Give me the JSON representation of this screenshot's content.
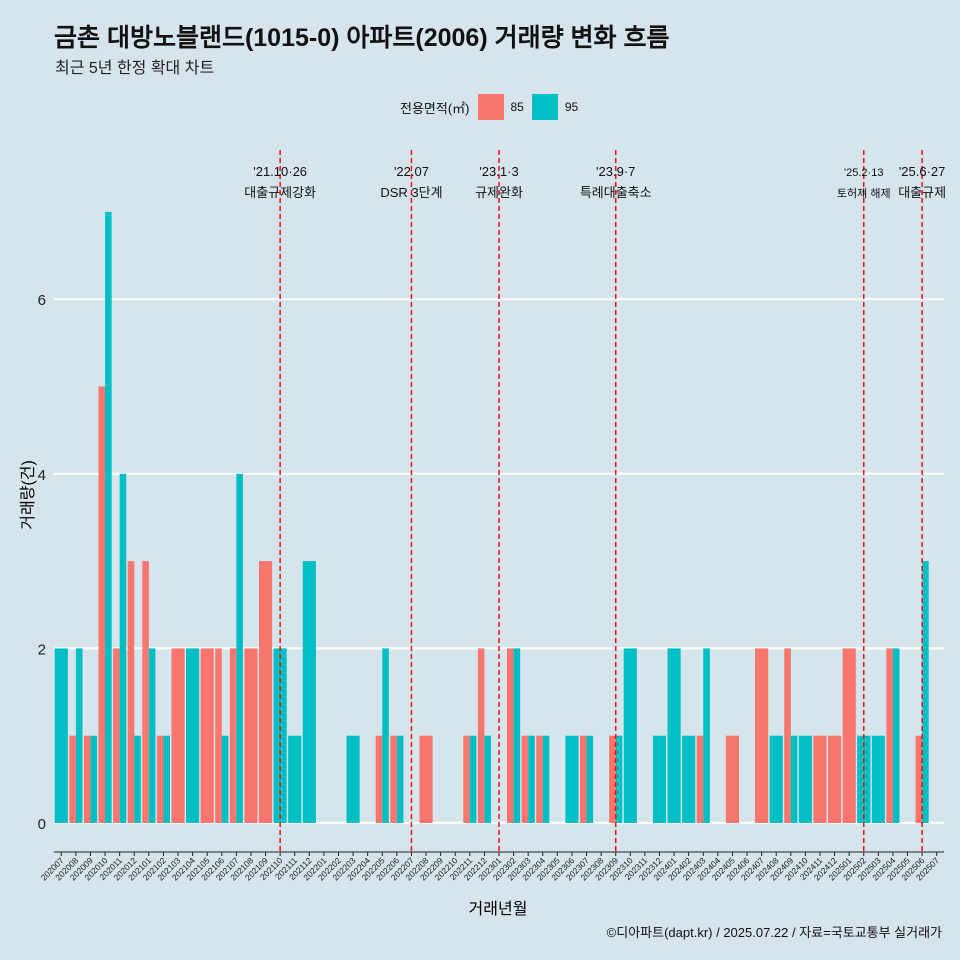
{
  "title": "금촌 대방노블랜드(1015-0) 아파트(2006) 거래량 변화 흐름",
  "subtitle": "최근 5년 한정 확대 차트",
  "caption": "©디아파트(dapt.kr) / 2025.07.22 / 자료=국토교통부 실거래가",
  "colors": {
    "background": "#d6e4ec",
    "s85": "#f8766d",
    "s95": "#00bfc4",
    "vline": "#ee1111",
    "grid": "#ffffff"
  },
  "chart_data": {
    "type": "bar",
    "title": "금촌 대방노블랜드(1015-0) 아파트(2006) 거래량 변화 흐름",
    "xlabel": "거래년월",
    "ylabel": "거래량(건)",
    "ylim": [
      0,
      7
    ],
    "yticks": [
      0,
      2,
      4,
      6
    ],
    "legend": {
      "title": "전용면적(㎡)",
      "position": "top"
    },
    "categories": [
      "202007",
      "202008",
      "202009",
      "202010",
      "202011",
      "202012",
      "202101",
      "202102",
      "202103",
      "202104",
      "202105",
      "202106",
      "202107",
      "202108",
      "202109",
      "202110",
      "202111",
      "202112",
      "202201",
      "202202",
      "202203",
      "202204",
      "202205",
      "202206",
      "202207",
      "202208",
      "202209",
      "202210",
      "202211",
      "202212",
      "202301",
      "202302",
      "202303",
      "202304",
      "202305",
      "202306",
      "202307",
      "202308",
      "202309",
      "202310",
      "202311",
      "202312",
      "202401",
      "202402",
      "202403",
      "202404",
      "202405",
      "202406",
      "202407",
      "202408",
      "202409",
      "202410",
      "202411",
      "202412",
      "202501",
      "202502",
      "202503",
      "202504",
      "202505",
      "202506",
      "202507"
    ],
    "series": [
      {
        "name": "85",
        "values": [
          0,
          1,
          1,
          5,
          2,
          3,
          3,
          1,
          2,
          0,
          2,
          2,
          2,
          2,
          3,
          0,
          0,
          0,
          0,
          0,
          0,
          0,
          1,
          1,
          0,
          1,
          0,
          0,
          1,
          2,
          0,
          2,
          1,
          1,
          0,
          0,
          1,
          0,
          1,
          0,
          0,
          0,
          0,
          0,
          1,
          0,
          1,
          0,
          2,
          0,
          2,
          0,
          1,
          1,
          2,
          0,
          0,
          2,
          0,
          1,
          0
        ]
      },
      {
        "name": "95",
        "values": [
          2,
          2,
          1,
          7,
          4,
          1,
          2,
          1,
          0,
          2,
          0,
          1,
          4,
          0,
          0,
          2,
          1,
          3,
          0,
          0,
          1,
          0,
          2,
          1,
          0,
          0,
          0,
          0,
          1,
          1,
          0,
          2,
          1,
          1,
          0,
          1,
          1,
          0,
          1,
          2,
          0,
          1,
          2,
          1,
          2,
          0,
          0,
          0,
          0,
          1,
          1,
          1,
          0,
          0,
          0,
          1,
          1,
          2,
          0,
          3,
          0
        ]
      }
    ],
    "events": [
      {
        "category": "202110",
        "date": "'21.10·26",
        "label": "대출규제강화"
      },
      {
        "category": "202207",
        "date": "'22.07",
        "label": "DSR 3단계"
      },
      {
        "category": "202301",
        "date": "'23.1·3",
        "label": "규제완화"
      },
      {
        "category": "202309",
        "date": "'23.9·7",
        "label": "특례대출축소"
      },
      {
        "category": "202502",
        "date": "'25.2·13",
        "label": "토허제 해제"
      },
      {
        "category": "202506",
        "date": "'25.6·27",
        "label": "대출규제"
      }
    ]
  }
}
